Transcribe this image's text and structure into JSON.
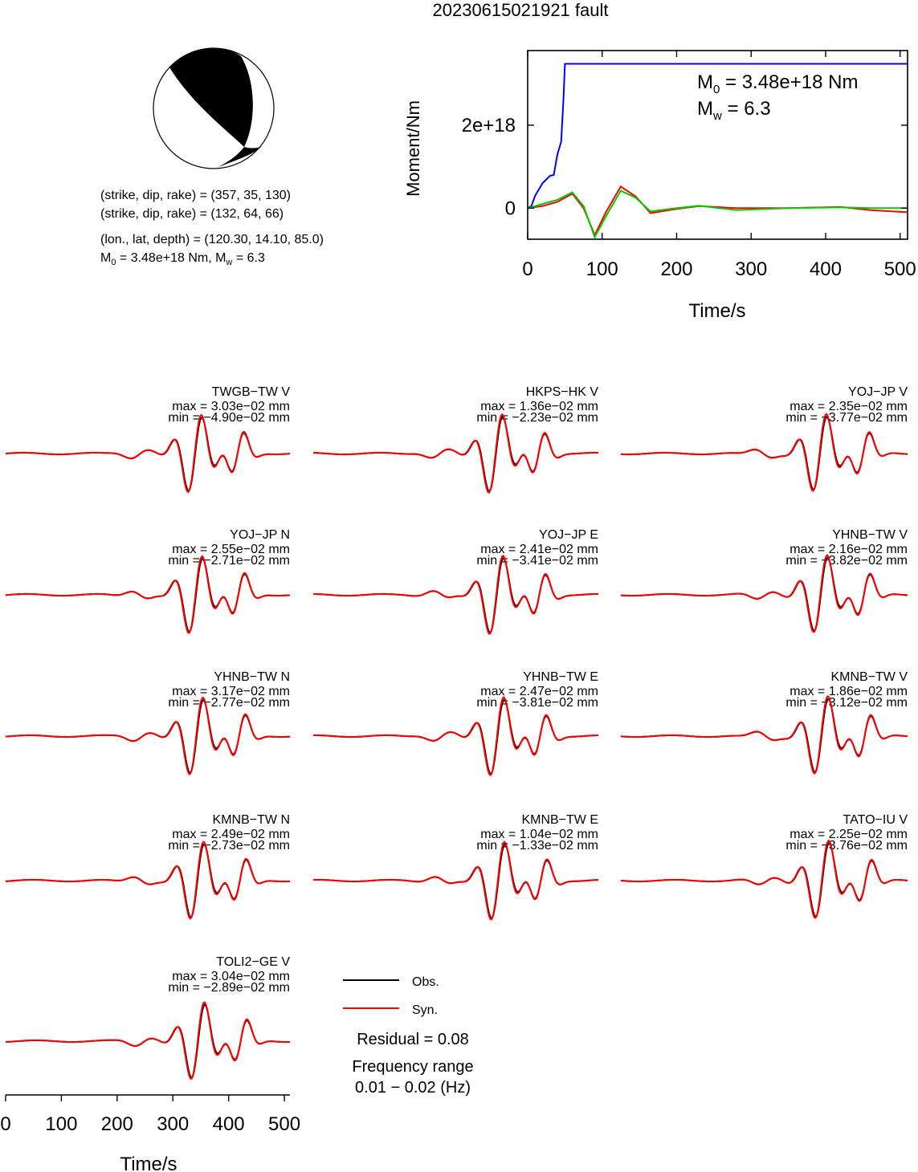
{
  "title": "20230615021921 fault",
  "colors": {
    "obs": "#000000",
    "syn": "#ff0000",
    "moment": "#0000ff",
    "stf_green": "#00cc00"
  },
  "info": {
    "line1": "(strike, dip, rake) = (357, 35, 130)",
    "line2": "(strike, dip, rake) = (132, 64, 66)",
    "line3": "(lon., lat, depth) = (120.30, 14.10, 85.0)",
    "m0_prefix": "M",
    "m0_sub": "0",
    "m0_rest": " = 3.48e+18 Nm, M",
    "mw_sub": "w",
    "mw_rest": " = 6.3"
  },
  "moment_plot": {
    "ylabel": "Moment/Nm",
    "xlabel": "Time/s",
    "xlim": [
      0,
      510
    ],
    "ylim": [
      -7.5e+17,
      3.8e+18
    ],
    "xticks": [
      0,
      100,
      200,
      300,
      400,
      500
    ],
    "yticks": [
      0,
      2e+18
    ],
    "ytick_labels": [
      "0",
      "2e+18"
    ],
    "annotation_m0_main": "M",
    "annotation_m0_sub": "0",
    "annotation_m0_rest": " = 3.48e+18 Nm",
    "annotation_mw_main": "M",
    "annotation_mw_sub": "w",
    "annotation_mw_rest": " = 6.3"
  },
  "chart_data": [
    {
      "type": "line",
      "ylabel": "Moment/Nm",
      "xlabel": "Time/s",
      "series": [
        {
          "color": "#0000ff",
          "x": [
            0,
            5,
            10,
            20,
            30,
            35,
            40,
            45,
            48,
            50,
            100,
            200,
            300,
            400,
            510
          ],
          "y": [
            0,
            5e+16,
            3e+17,
            6e+17,
            7.8e+17,
            8e+17,
            1.3e+18,
            1.6e+18,
            2.6e+18,
            3.48e+18,
            3.48e+18,
            3.48e+18,
            3.48e+18,
            3.48e+18,
            3.48e+18
          ]
        },
        {
          "color": "#ff0000",
          "x": [
            0,
            20,
            40,
            60,
            75,
            90,
            105,
            125,
            145,
            165,
            200,
            230,
            280,
            350,
            420,
            460,
            510
          ],
          "y": [
            0,
            5e+16,
            1.5e+17,
            3.5e+17,
            0.0,
            -6.5e+17,
            -1e+17,
            5.2e+17,
            2.8e+17,
            -1.2e+17,
            -2e+16,
            5e+16,
            0.0,
            0.0,
            3e+16,
            -5e+16,
            -1e+17
          ]
        },
        {
          "color": "#00cc00",
          "x": [
            0,
            20,
            40,
            60,
            75,
            90,
            105,
            125,
            145,
            165,
            200,
            230,
            280,
            350,
            420,
            460,
            510
          ],
          "y": [
            0,
            1e+17,
            2e+17,
            3.8e+17,
            5e+16,
            -7e+17,
            -2e+17,
            4.2e+17,
            2.5e+17,
            -8e+16,
            0.0,
            6e+16,
            -5e+16,
            0.0,
            2e+16,
            0.0,
            0.0
          ]
        }
      ]
    },
    {
      "type": "line",
      "xlabel": "Time/s",
      "xlim": [
        0,
        510
      ],
      "xticks": [
        0,
        100,
        200,
        300,
        400,
        500
      ],
      "legend": {
        "position": "center",
        "obs": "Obs.",
        "syn": "Syn."
      },
      "residual": "Residual = 0.08",
      "freq_label": "Frequency range",
      "freq_range": "0.01 − 0.02 (Hz)",
      "stations": [
        {
          "name": "TWGB−TW V",
          "max": "max = 3.03e−02 mm",
          "min": "min = −4.90e−02 mm"
        },
        {
          "name": "HKPS−HK V",
          "max": "max = 1.36e−02 mm",
          "min": "min = −2.23e−02 mm"
        },
        {
          "name": "YOJ−JP V",
          "max": "max = 2.35e−02 mm",
          "min": "min = −3.77e−02 mm"
        },
        {
          "name": "YOJ−JP N",
          "max": "max = 2.55e−02 mm",
          "min": "min = −2.71e−02 mm"
        },
        {
          "name": "YOJ−JP E",
          "max": "max = 2.41e−02 mm",
          "min": "min = −3.41e−02 mm"
        },
        {
          "name": "YHNB−TW V",
          "max": "max = 2.16e−02 mm",
          "min": "min = −3.82e−02 mm"
        },
        {
          "name": "YHNB−TW N",
          "max": "max = 3.17e−02 mm",
          "min": "min = −2.77e−02 mm"
        },
        {
          "name": "YHNB−TW E",
          "max": "max = 2.47e−02 mm",
          "min": "min = −3.81e−02 mm"
        },
        {
          "name": "KMNB−TW V",
          "max": "max = 1.86e−02 mm",
          "min": "min = −3.12e−02 mm"
        },
        {
          "name": "KMNB−TW N",
          "max": "max = 2.49e−02 mm",
          "min": "min = −2.73e−02 mm"
        },
        {
          "name": "KMNB−TW E",
          "max": "max = 1.04e−02 mm",
          "min": "min = −1.33e−02 mm"
        },
        {
          "name": "TATO−IU V",
          "max": "max = 2.25e−02 mm",
          "min": "min = −3.76e−02 mm"
        },
        {
          "name": "TOLI2−GE V",
          "max": "max = 3.04e−02 mm",
          "min": "min = −2.89e−02 mm"
        }
      ]
    }
  ]
}
